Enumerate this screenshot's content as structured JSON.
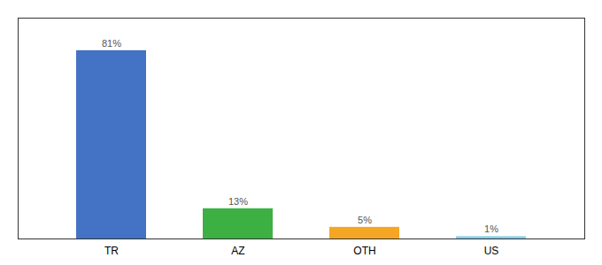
{
  "chart_data": {
    "type": "bar",
    "categories": [
      "TR",
      "AZ",
      "OTH",
      "US"
    ],
    "values": [
      81,
      13,
      5,
      1
    ],
    "value_labels": [
      "81%",
      "13%",
      "5%",
      "1%"
    ],
    "colors": [
      "#4472c4",
      "#3cb043",
      "#f5a623",
      "#87ceeb"
    ],
    "ylim": [
      0,
      95
    ],
    "grid": false,
    "data_labels": true,
    "tick_labels": "x"
  }
}
